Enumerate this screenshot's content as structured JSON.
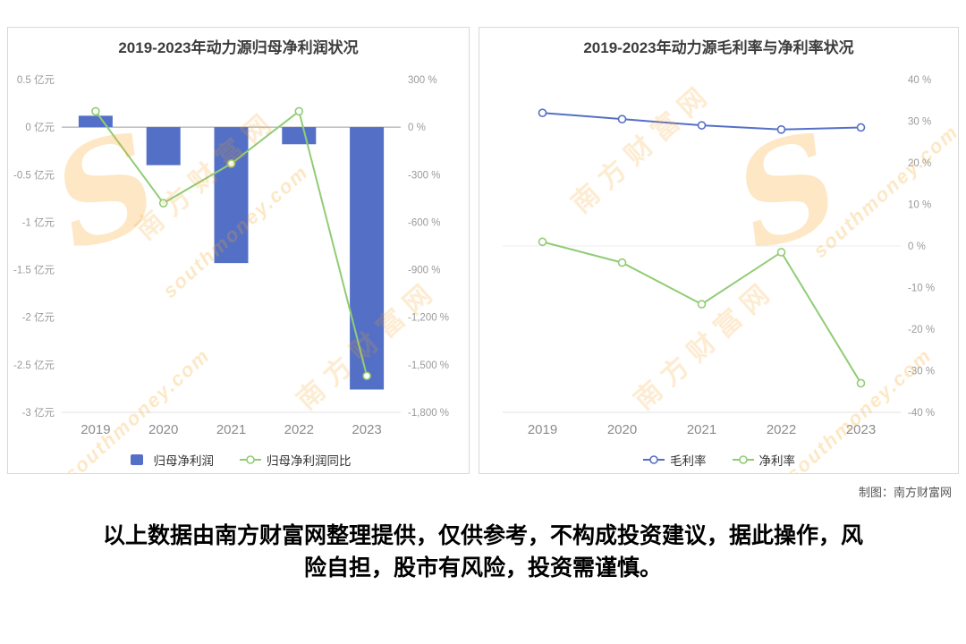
{
  "watermark": {
    "s": "S",
    "cn": "南方财富网",
    "en": "southmoney.com"
  },
  "footer": {
    "credit": "制图：南方财富网",
    "disclaimer": "以上数据由南方财富网整理提供，仅供参考，不构成投资建议，据此操作，风险自担，股市有风险，投资需谨慎。"
  },
  "chart_data": [
    {
      "type": "bar",
      "title": "2019-2023年动力源归母净利润状况",
      "categories": [
        "2019",
        "2020",
        "2021",
        "2022",
        "2023"
      ],
      "series": [
        {
          "name": "归母净利润",
          "type": "bar",
          "axis": "left",
          "unit": "亿元",
          "color": "#5470c6",
          "values": [
            0.12,
            -0.4,
            -1.43,
            -0.18,
            -2.76
          ]
        },
        {
          "name": "归母净利润同比",
          "type": "line",
          "axis": "right",
          "unit": "%",
          "color": "#91cc75",
          "values": [
            100,
            -480,
            -230,
            100,
            -1570
          ]
        }
      ],
      "left_axis": {
        "min": -3,
        "max": 0.5,
        "ticks": [
          "0.5 亿元",
          "0 亿元",
          "-0.5 亿元",
          "-1 亿元",
          "-1.5 亿元",
          "-2 亿元",
          "-2.5 亿元",
          "-3 亿元"
        ]
      },
      "right_axis": {
        "min": -1800,
        "max": 300,
        "ticks": [
          "300 %",
          "0 %",
          "-300 %",
          "-600 %",
          "-900 %",
          "-1,200 %",
          "-1,500 %",
          "-1,800 %"
        ]
      },
      "grid": "zero-line-only",
      "legend_position": "bottom"
    },
    {
      "type": "line",
      "title": "2019-2023年动力源毛利率与净利率状况",
      "categories": [
        "2019",
        "2020",
        "2021",
        "2022",
        "2023"
      ],
      "series": [
        {
          "name": "毛利率",
          "type": "line",
          "axis": "right",
          "unit": "%",
          "color": "#5470c6",
          "values": [
            32,
            30.5,
            29,
            28,
            28.5
          ]
        },
        {
          "name": "净利率",
          "type": "line",
          "axis": "right",
          "unit": "%",
          "color": "#91cc75",
          "values": [
            1,
            -4,
            -14,
            -1.5,
            -33
          ]
        }
      ],
      "right_axis": {
        "min": -40,
        "max": 40,
        "ticks": [
          "40 %",
          "30 %",
          "20 %",
          "10 %",
          "0 %",
          "-10 %",
          "-20 %",
          "-30 %",
          "-40 %"
        ]
      },
      "grid": "minimal",
      "legend_position": "bottom"
    }
  ]
}
